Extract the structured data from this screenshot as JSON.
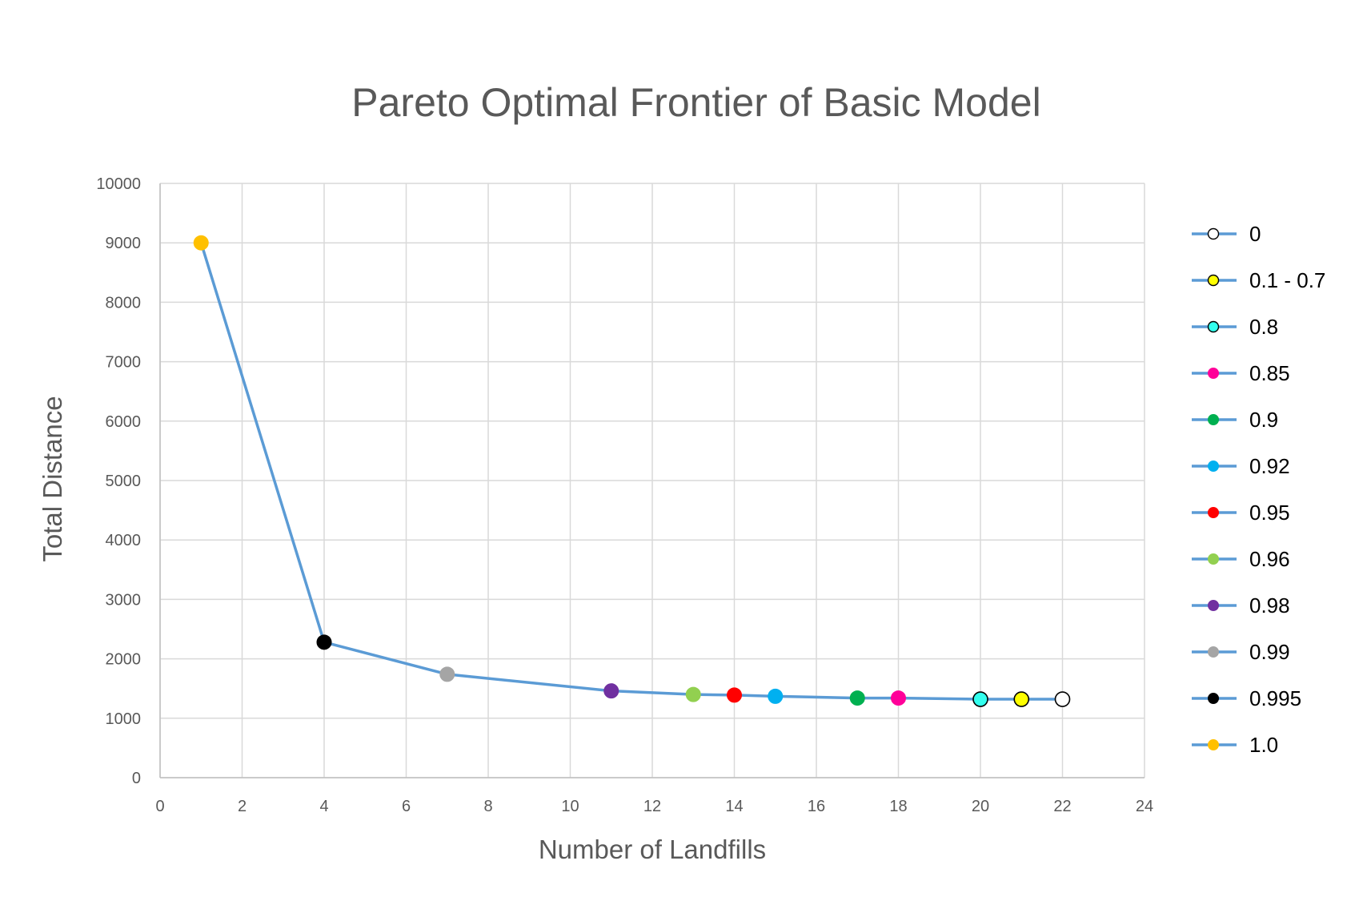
{
  "chart_data": {
    "type": "line",
    "title": "Pareto Optimal Frontier of Basic Model",
    "xlabel": "Number of Landfills",
    "ylabel": "Total Distance",
    "xlim": [
      0,
      24
    ],
    "ylim": [
      0,
      10000
    ],
    "x_ticks": [
      0,
      2,
      4,
      6,
      8,
      10,
      12,
      14,
      16,
      18,
      20,
      22,
      24
    ],
    "y_ticks": [
      0,
      1000,
      2000,
      3000,
      4000,
      5000,
      6000,
      7000,
      8000,
      9000,
      10000
    ],
    "grid": true,
    "legend_position": "right",
    "line_color": "#5b9bd5",
    "points": [
      {
        "x": 1,
        "y": 9000,
        "label": "1.0",
        "color": "#ffc000"
      },
      {
        "x": 4,
        "y": 2280,
        "label": "0.995",
        "color": "#000000"
      },
      {
        "x": 7,
        "y": 1740,
        "label": "0.99",
        "color": "#a5a5a5"
      },
      {
        "x": 11,
        "y": 1460,
        "label": "0.98",
        "color": "#7030a0"
      },
      {
        "x": 13,
        "y": 1400,
        "label": "0.96",
        "color": "#92d050"
      },
      {
        "x": 14,
        "y": 1390,
        "label": "0.95",
        "color": "#ff0000"
      },
      {
        "x": 15,
        "y": 1370,
        "label": "0.92",
        "color": "#00b0f0"
      },
      {
        "x": 17,
        "y": 1340,
        "label": "0.9",
        "color": "#00b050"
      },
      {
        "x": 18,
        "y": 1340,
        "label": "0.85",
        "color": "#ff0099"
      },
      {
        "x": 20,
        "y": 1320,
        "label": "0.8",
        "color": "#33ffee"
      },
      {
        "x": 21,
        "y": 1320,
        "label": "0.1 - 0.7",
        "color": "#ffff00"
      },
      {
        "x": 22,
        "y": 1320,
        "label": "0",
        "color": "#ffffff"
      }
    ],
    "legend": [
      {
        "label": "0",
        "color": "#ffffff"
      },
      {
        "label": "0.1 - 0.7",
        "color": "#ffff00"
      },
      {
        "label": "0.8",
        "color": "#33ffee"
      },
      {
        "label": "0.85",
        "color": "#ff0099"
      },
      {
        "label": "0.9",
        "color": "#00b050"
      },
      {
        "label": "0.92",
        "color": "#00b0f0"
      },
      {
        "label": "0.95",
        "color": "#ff0000"
      },
      {
        "label": "0.96",
        "color": "#92d050"
      },
      {
        "label": "0.98",
        "color": "#7030a0"
      },
      {
        "label": "0.99",
        "color": "#a5a5a5"
      },
      {
        "label": "0.995",
        "color": "#000000"
      },
      {
        "label": "1.0",
        "color": "#ffc000"
      }
    ]
  }
}
